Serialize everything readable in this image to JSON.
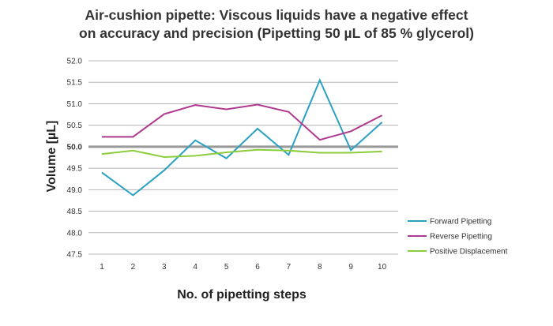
{
  "chart_data": {
    "type": "line",
    "title_line1": "Air-cushion pipette: Viscous liquids have a negative effect",
    "title_line2": "on accuracy and precision (Pipetting 50 µL of 85 % glycerol)",
    "xlabel": "No. of pipetting steps",
    "ylabel": "Volume [µL]",
    "x": [
      1,
      2,
      3,
      4,
      5,
      6,
      7,
      8,
      9,
      10
    ],
    "x_tick_labels": [
      "1",
      "2",
      "3",
      "4",
      "5",
      "6",
      "7",
      "8",
      "9",
      "10"
    ],
    "ylim": [
      47.5,
      52.0
    ],
    "y_ticks": [
      47.5,
      48.0,
      48.5,
      49.0,
      49.5,
      50.0,
      50.5,
      51.0,
      51.5,
      52.0
    ],
    "y_tick_labels": [
      "47.5",
      "48.0",
      "48.5",
      "49.0",
      "49.5",
      "50.0",
      "50.5",
      "51.0",
      "51.5",
      "52.0"
    ],
    "y_tick_bold": "50.0",
    "reference_line": 50.0,
    "grid": true,
    "legend_position": "bottom-right",
    "series": [
      {
        "name": "Forward Pipetting",
        "color": "#2aa0c2",
        "values": [
          49.4,
          48.87,
          49.45,
          50.15,
          49.73,
          50.42,
          49.81,
          51.55,
          49.92,
          50.57
        ]
      },
      {
        "name": "Reverse Pipetting",
        "color": "#b0398f",
        "values": [
          50.23,
          50.23,
          50.76,
          50.97,
          50.87,
          50.98,
          50.81,
          50.16,
          50.36,
          50.73
        ]
      },
      {
        "name": "Positive Displacement",
        "color": "#8ccd3c",
        "values": [
          49.83,
          49.91,
          49.76,
          49.79,
          49.87,
          49.93,
          49.91,
          49.86,
          49.86,
          49.89
        ]
      }
    ]
  }
}
